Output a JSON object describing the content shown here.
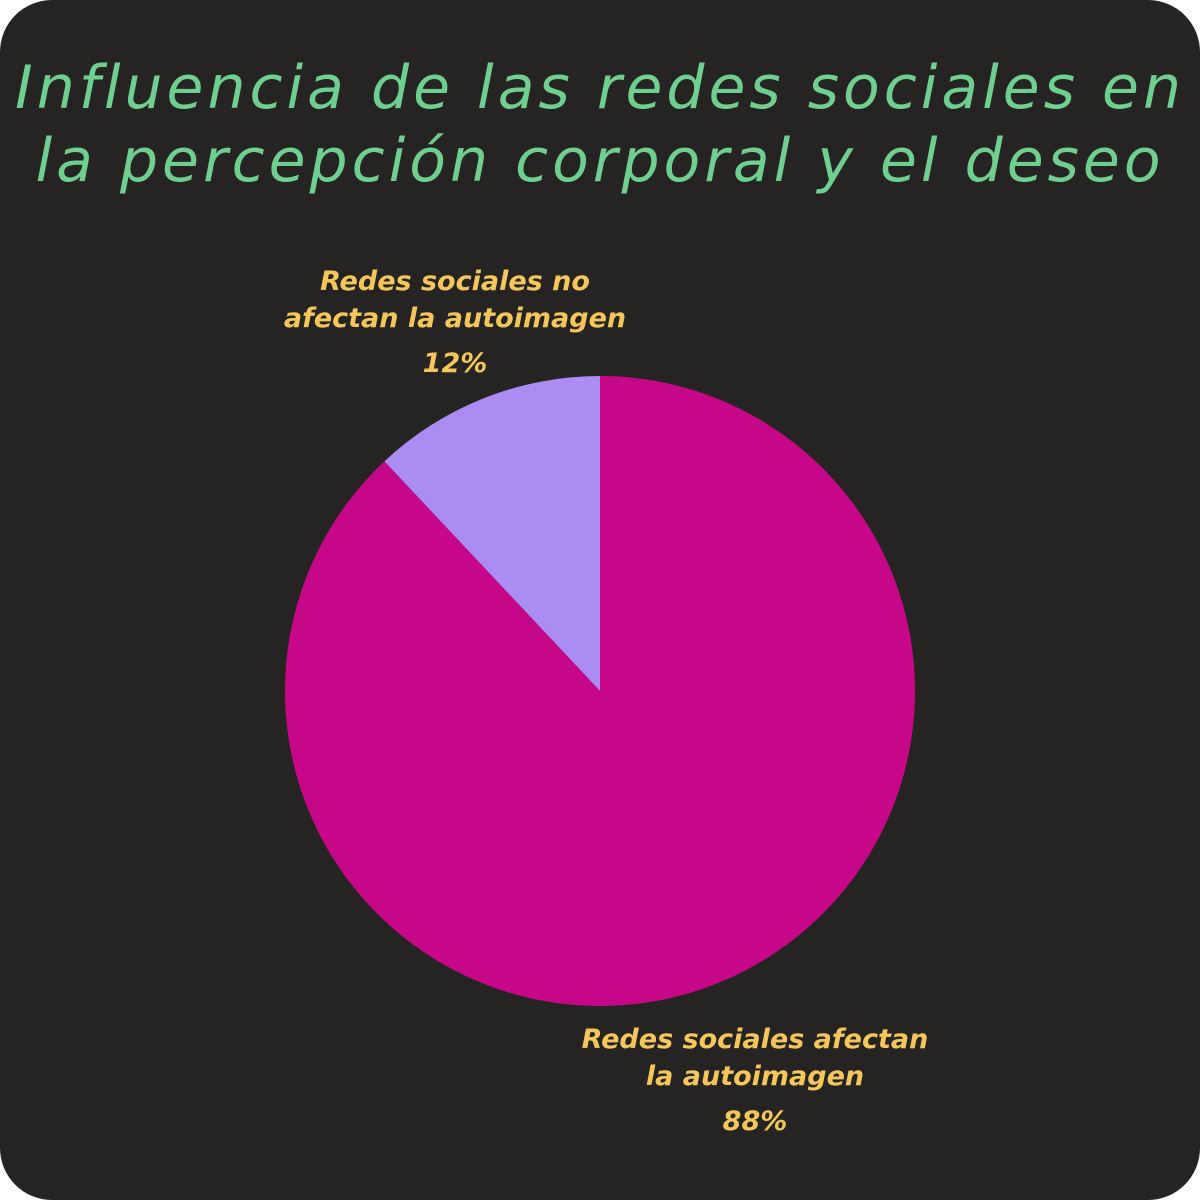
{
  "title_lines": [
    "Influencia de las redes sociales en",
    "la percepción corporal y el deseo"
  ],
  "colors": {
    "background": "#252423",
    "title": "#6fcf8f",
    "label": "#f6c65b"
  },
  "chart_data": {
    "type": "pie",
    "title": "Influencia de las redes sociales en la percepción corporal y el deseo",
    "start": "12 o'clock",
    "direction": "counterclockwise",
    "slices": [
      {
        "label_lines": [
          "Redes sociales no",
          "afectan la autoimagen"
        ],
        "value": 12,
        "value_label": "12%",
        "color": "#ab8cf3"
      },
      {
        "label_lines": [
          "Redes sociales afectan",
          "la autoimagen"
        ],
        "value": 88,
        "value_label": "88%",
        "color": "#c60888"
      }
    ]
  }
}
